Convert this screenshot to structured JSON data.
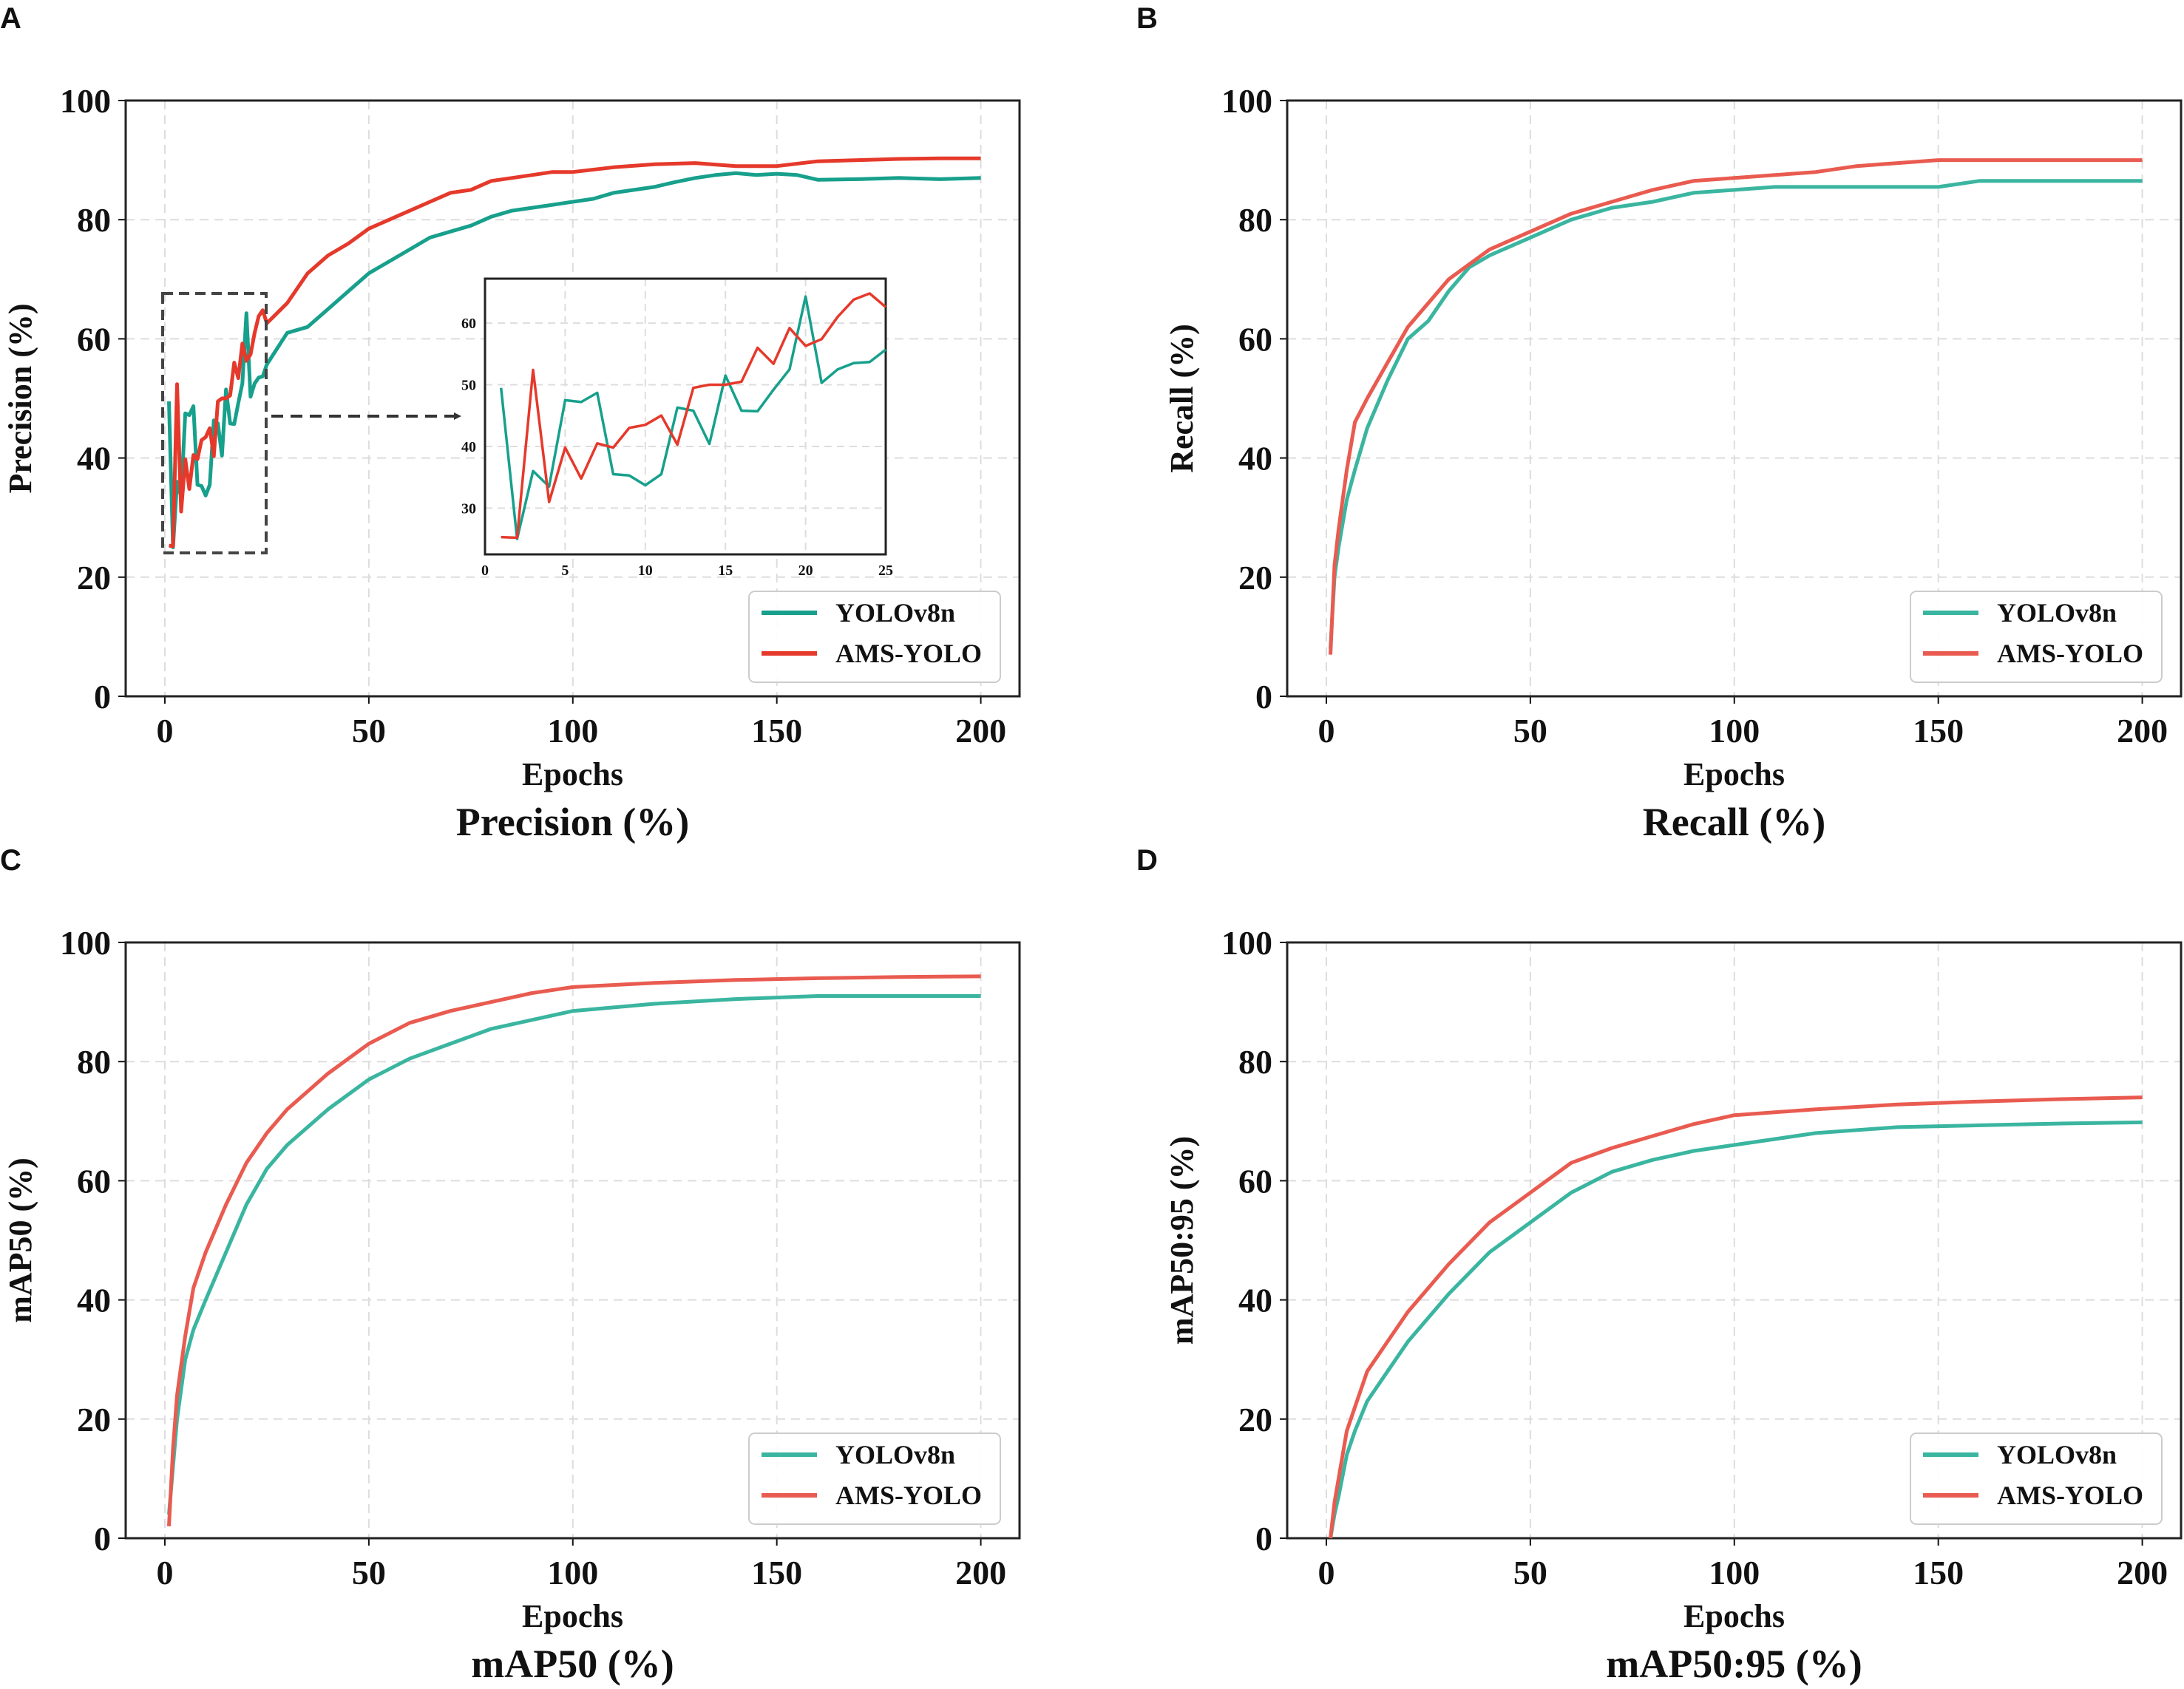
{
  "colors": {
    "yolo_a": "#17a08c",
    "ams_a": "#e5392b",
    "yolo": "#3ab5a0",
    "ams": "#e95b50"
  },
  "chart_data": [
    {
      "type": "line",
      "letter": "A",
      "title": "Precision (%)",
      "xlabel": "Epochs",
      "ylabel": "Precision (%)",
      "xlim": [
        -9.6,
        209.5
      ],
      "ylim": [
        0,
        100
      ],
      "xticks": [
        0,
        50,
        100,
        150,
        200
      ],
      "yticks": [
        0,
        20,
        40,
        60,
        80,
        100
      ],
      "grid": true,
      "legend": "bottom-right",
      "series": [
        {
          "name": "YOLOv8n",
          "x": [
            1,
            2,
            3,
            4,
            5,
            6,
            7,
            8,
            9,
            10,
            11,
            12,
            13,
            14,
            15,
            16,
            17,
            18,
            19,
            20,
            21,
            22,
            23,
            24,
            25,
            30,
            35,
            40,
            45,
            50,
            55,
            60,
            65,
            70,
            75,
            80,
            85,
            90,
            95,
            100,
            105,
            110,
            115,
            120,
            125,
            130,
            135,
            140,
            145,
            150,
            155,
            160,
            170,
            180,
            190,
            200
          ],
          "y": [
            49.5,
            25,
            36,
            33.5,
            47.5,
            47.2,
            48.7,
            35.5,
            35.3,
            33.7,
            35.5,
            46.3,
            45.8,
            40.4,
            51.5,
            45.8,
            45.7,
            49.2,
            52.5,
            64.3,
            50.3,
            52.5,
            53.5,
            53.7,
            55.7,
            61,
            62,
            65,
            68,
            71,
            73,
            75,
            77,
            78,
            79,
            80.5,
            81.5,
            82,
            82.5,
            83,
            83.5,
            84.5,
            85,
            85.5,
            86.3,
            87,
            87.5,
            87.8,
            87.5,
            87.7,
            87.5,
            86.7,
            86.8,
            87,
            86.8,
            87
          ]
        },
        {
          "name": "AMS-YOLO",
          "x": [
            1,
            2,
            3,
            4,
            5,
            6,
            7,
            8,
            9,
            10,
            11,
            12,
            13,
            14,
            15,
            16,
            17,
            18,
            19,
            20,
            21,
            22,
            23,
            24,
            25,
            30,
            35,
            40,
            45,
            50,
            55,
            60,
            65,
            70,
            75,
            80,
            85,
            90,
            95,
            100,
            110,
            120,
            130,
            140,
            150,
            160,
            170,
            180,
            190,
            200
          ],
          "y": [
            25.3,
            25.2,
            52.4,
            31,
            39.8,
            34.8,
            40.5,
            39.8,
            43,
            43.5,
            45,
            40.3,
            49.5,
            50,
            50,
            50.5,
            56,
            53.4,
            59.2,
            56.3,
            57.4,
            61,
            63.8,
            64.8,
            62.6,
            66,
            71,
            74,
            76,
            78.5,
            80,
            81.5,
            83,
            84.5,
            85,
            86.5,
            87,
            87.5,
            88,
            88,
            88.8,
            89.3,
            89.5,
            89,
            89,
            89.8,
            90,
            90.2,
            90.3,
            90.3
          ]
        }
      ],
      "inset": {
        "xlim": [
          0,
          25
        ],
        "ylim": [
          22.5,
          67.2
        ],
        "xticks": [
          0,
          5,
          10,
          15,
          20,
          25
        ],
        "yticks": [
          30,
          40,
          50,
          60
        ],
        "series": [
          {
            "name": "YOLOv8n",
            "x": [
              1,
              2,
              3,
              4,
              5,
              6,
              7,
              8,
              9,
              10,
              11,
              12,
              13,
              14,
              15,
              16,
              17,
              18,
              19,
              20,
              21,
              22,
              23,
              24,
              25
            ],
            "y": [
              49.5,
              25,
              36,
              33.5,
              47.5,
              47.2,
              48.7,
              35.5,
              35.3,
              33.7,
              35.5,
              46.3,
              45.8,
              40.4,
              51.5,
              45.8,
              45.7,
              49.2,
              52.5,
              64.3,
              50.3,
              52.5,
              53.5,
              53.7,
              55.7
            ]
          },
          {
            "name": "AMS-YOLO",
            "x": [
              1,
              2,
              3,
              4,
              5,
              6,
              7,
              8,
              9,
              10,
              11,
              12,
              13,
              14,
              15,
              16,
              17,
              18,
              19,
              20,
              21,
              22,
              23,
              24,
              25
            ],
            "y": [
              25.3,
              25.2,
              52.4,
              31,
              39.8,
              34.8,
              40.5,
              39.8,
              43,
              43.5,
              45,
              40.3,
              49.5,
              50,
              50,
              50.5,
              56,
              53.4,
              59.2,
              56.3,
              57.4,
              61,
              63.8,
              64.8,
              62.6
            ]
          }
        ]
      }
    },
    {
      "type": "line",
      "letter": "B",
      "title": "Recall (%)",
      "xlabel": "Epochs",
      "ylabel": "Recall (%)",
      "xlim": [
        -9.6,
        209.5
      ],
      "ylim": [
        0,
        100
      ],
      "xticks": [
        0,
        50,
        100,
        150,
        200
      ],
      "yticks": [
        0,
        20,
        40,
        60,
        80,
        100
      ],
      "grid": true,
      "legend": "bottom-right",
      "series": [
        {
          "name": "YOLOv8n",
          "x": [
            1,
            2,
            3,
            5,
            7,
            10,
            15,
            20,
            25,
            30,
            35,
            40,
            50,
            60,
            70,
            80,
            90,
            100,
            110,
            120,
            130,
            140,
            150,
            160,
            170,
            180,
            190,
            200
          ],
          "y": [
            8,
            20,
            25,
            33,
            38,
            45,
            53,
            60,
            63,
            68,
            72,
            74,
            77,
            80,
            82,
            83,
            84.5,
            85,
            85.5,
            85.5,
            85.5,
            85.5,
            85.5,
            86.5,
            86.5,
            86.5,
            86.5,
            86.5
          ]
        },
        {
          "name": "AMS-YOLO",
          "x": [
            1,
            2,
            3,
            5,
            7,
            10,
            15,
            20,
            25,
            30,
            35,
            40,
            50,
            60,
            70,
            80,
            90,
            100,
            110,
            120,
            130,
            140,
            150,
            160,
            170,
            180,
            190,
            200
          ],
          "y": [
            7,
            22,
            28,
            38,
            46,
            50,
            56,
            62,
            66,
            70,
            72.5,
            75,
            78,
            81,
            83,
            85,
            86.5,
            87,
            87.5,
            88,
            89,
            89.5,
            90,
            90,
            90,
            90,
            90,
            90
          ]
        }
      ]
    },
    {
      "type": "line",
      "letter": "C",
      "title": "mAP50 (%)",
      "xlabel": "Epochs",
      "ylabel": "mAP50 (%)",
      "xlim": [
        -9.6,
        209.5
      ],
      "ylim": [
        0,
        100
      ],
      "xticks": [
        0,
        50,
        100,
        150,
        200
      ],
      "yticks": [
        0,
        20,
        40,
        60,
        80,
        100
      ],
      "grid": true,
      "legend": "bottom-right",
      "series": [
        {
          "name": "YOLOv8n",
          "x": [
            1,
            2,
            3,
            5,
            7,
            10,
            15,
            20,
            25,
            30,
            40,
            50,
            60,
            70,
            80,
            90,
            100,
            120,
            140,
            160,
            180,
            200
          ],
          "y": [
            4,
            12,
            20,
            30,
            35,
            40,
            48,
            56,
            62,
            66,
            72,
            77,
            80.5,
            83,
            85.5,
            87,
            88.5,
            89.7,
            90.5,
            91,
            91,
            91
          ]
        },
        {
          "name": "AMS-YOLO",
          "x": [
            1,
            2,
            3,
            5,
            7,
            10,
            15,
            20,
            25,
            30,
            40,
            50,
            60,
            70,
            80,
            90,
            100,
            120,
            140,
            160,
            180,
            200
          ],
          "y": [
            2,
            15,
            24,
            34,
            42,
            48,
            56,
            63,
            68,
            72,
            78,
            83,
            86.5,
            88.5,
            90,
            91.5,
            92.5,
            93.2,
            93.7,
            94,
            94.2,
            94.3
          ]
        }
      ]
    },
    {
      "type": "line",
      "letter": "D",
      "title": "mAP50:95 (%)",
      "xlabel": "Epochs",
      "ylabel": "mAP50:95 (%)",
      "xlim": [
        -9.6,
        209.5
      ],
      "ylim": [
        0,
        100
      ],
      "xticks": [
        0,
        50,
        100,
        150,
        200
      ],
      "yticks": [
        0,
        20,
        40,
        60,
        80,
        100
      ],
      "grid": true,
      "legend": "bottom-right",
      "series": [
        {
          "name": "YOLOv8n",
          "x": [
            1,
            2,
            3,
            5,
            7,
            10,
            15,
            20,
            25,
            30,
            40,
            50,
            60,
            70,
            80,
            90,
            100,
            120,
            140,
            160,
            180,
            200
          ],
          "y": [
            0,
            4,
            7,
            14,
            18,
            23,
            28,
            33,
            37,
            41,
            48,
            53,
            58,
            61.5,
            63.5,
            65,
            66,
            68,
            69,
            69.3,
            69.6,
            69.8
          ]
        },
        {
          "name": "AMS-YOLO",
          "x": [
            1,
            2,
            3,
            5,
            7,
            10,
            15,
            20,
            25,
            30,
            40,
            50,
            60,
            70,
            80,
            90,
            100,
            120,
            140,
            160,
            180,
            200
          ],
          "y": [
            0,
            6,
            10,
            18,
            22,
            28,
            33,
            38,
            42,
            46,
            53,
            58,
            63,
            65.5,
            67.5,
            69.5,
            71,
            72,
            72.8,
            73.3,
            73.7,
            74
          ]
        }
      ]
    }
  ]
}
